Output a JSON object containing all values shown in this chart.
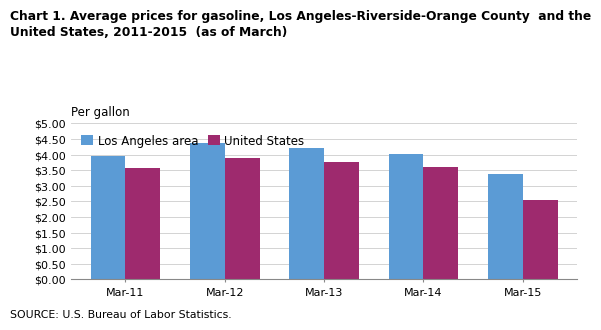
{
  "title_line1": "Chart 1. Average prices for gasoline, Los Angeles-Riverside-Orange County  and the",
  "title_line2": "United States, 2011-2015  (as of March)",
  "ylabel": "Per gallon",
  "categories": [
    "Mar-11",
    "Mar-12",
    "Mar-13",
    "Mar-14",
    "Mar-15"
  ],
  "series": [
    {
      "label": "Los Angeles area",
      "values": [
        3.95,
        4.38,
        4.2,
        4.02,
        3.38
      ],
      "color": "#5B9BD5"
    },
    {
      "label": "United States",
      "values": [
        3.58,
        3.88,
        3.78,
        3.6,
        2.54
      ],
      "color": "#9E2A6E"
    }
  ],
  "ylim": [
    0,
    5.0
  ],
  "yticks": [
    0.0,
    0.5,
    1.0,
    1.5,
    2.0,
    2.5,
    3.0,
    3.5,
    4.0,
    4.5,
    5.0
  ],
  "source": "SOURCE: U.S. Bureau of Labor Statistics.",
  "background_color": "#FFFFFF",
  "bar_width": 0.35,
  "title_fontsize": 8.8,
  "ylabel_fontsize": 8.5,
  "tick_fontsize": 8.0,
  "legend_fontsize": 8.5,
  "source_fontsize": 7.8
}
